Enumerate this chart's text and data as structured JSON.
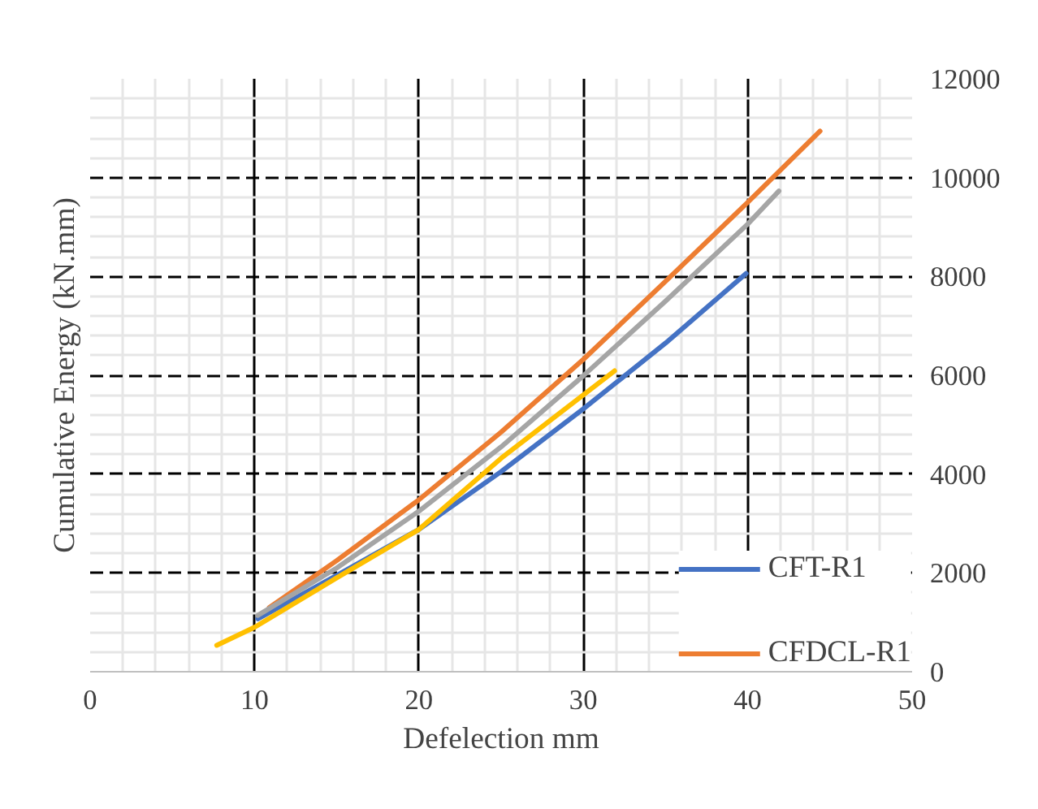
{
  "chart_data": {
    "type": "line",
    "xlabel": "Defelection mm",
    "ylabel": "Cumulative Energy (kN.mm)",
    "xlim": [
      0,
      50
    ],
    "xticks": [
      0,
      10,
      20,
      30,
      40,
      50
    ],
    "ylim": [
      0,
      12000
    ],
    "yticks": [
      0,
      2000,
      4000,
      6000,
      8000,
      10000,
      12000
    ],
    "grid": true,
    "legend": "bottom right",
    "marker": "none",
    "line_style": "solid",
    "series": [
      {
        "name": "CFT-R1",
        "color": "#4472c4",
        "x": [
          10.2,
          15,
          20,
          25,
          30,
          35,
          39.9
        ],
        "values": [
          1070,
          1950,
          2880,
          4050,
          5320,
          6650,
          8060
        ]
      },
      {
        "name": "CFDCL-R1",
        "color": "#ed7d31",
        "x": [
          10.9,
          15,
          20,
          25,
          30,
          35,
          40,
          44.4
        ],
        "values": [
          1300,
          2250,
          3480,
          4850,
          6320,
          7900,
          9500,
          10940
        ]
      },
      {
        "color": "#a5a5a5",
        "x": [
          10.2,
          15,
          20,
          25,
          30,
          35,
          40,
          41.9
        ],
        "values": [
          1140,
          2100,
          3250,
          4550,
          5990,
          7500,
          9060,
          9730
        ]
      },
      {
        "color": "#ffc000",
        "x": [
          7.7,
          10,
          15,
          20,
          25,
          31.9
        ],
        "values": [
          535,
          900,
          1900,
          2880,
          4320,
          6090
        ]
      }
    ]
  }
}
